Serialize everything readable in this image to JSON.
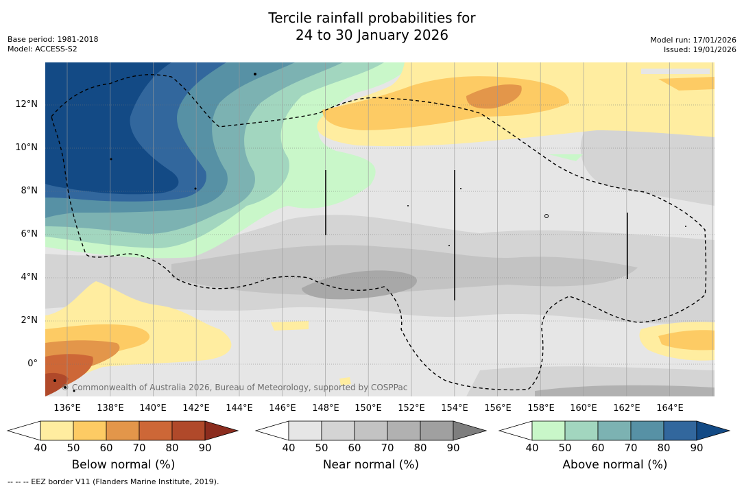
{
  "header": {
    "title_line1": "Tercile rainfall probabilities for",
    "title_line2": "24 to 30 January 2026",
    "base_period": "Base period: 1981-2018",
    "model": "Model: ACCESS-S2",
    "model_run": "Model run: 17/01/2026",
    "issued": "Issued: 19/01/2026"
  },
  "map": {
    "lat_labels": [
      "12°N",
      "10°N",
      "8°N",
      "6°N",
      "4°N",
      "2°N",
      "0°"
    ],
    "lon_labels": [
      "136°E",
      "138°E",
      "140°E",
      "142°E",
      "144°E",
      "146°E",
      "148°E",
      "150°E",
      "152°E",
      "154°E",
      "156°E",
      "158°E",
      "160°E",
      "162°E",
      "164°E"
    ],
    "credit": "© Commonwealth of Australia 2026, Bureau of Meteorology, supported by COSPPac"
  },
  "colorbars": [
    {
      "label": "Below normal (%)",
      "ticks": [
        "40",
        "50",
        "60",
        "70",
        "80",
        "90"
      ],
      "colors": [
        "#ffffff",
        "#ffeda0",
        "#fdcb64",
        "#e3964a",
        "#cd6737",
        "#b0492a",
        "#8b2c1e"
      ]
    },
    {
      "label": "Near normal (%)",
      "ticks": [
        "40",
        "50",
        "60",
        "70",
        "80",
        "90"
      ],
      "colors": [
        "#ffffff",
        "#e6e6e6",
        "#d4d4d4",
        "#c3c3c3",
        "#b1b1b1",
        "#a0a0a0",
        "#7e7e7e"
      ]
    },
    {
      "label": "Above normal (%)",
      "ticks": [
        "40",
        "50",
        "60",
        "70",
        "80",
        "90"
      ],
      "colors": [
        "#ffffff",
        "#c9f7c9",
        "#a2d6bf",
        "#7cb2b2",
        "#5791a5",
        "#32679d",
        "#134a85"
      ]
    }
  ],
  "legend": {
    "eez_note": "--  --  -- EEZ border V11 (Flanders Marine Institute, 2019)."
  }
}
